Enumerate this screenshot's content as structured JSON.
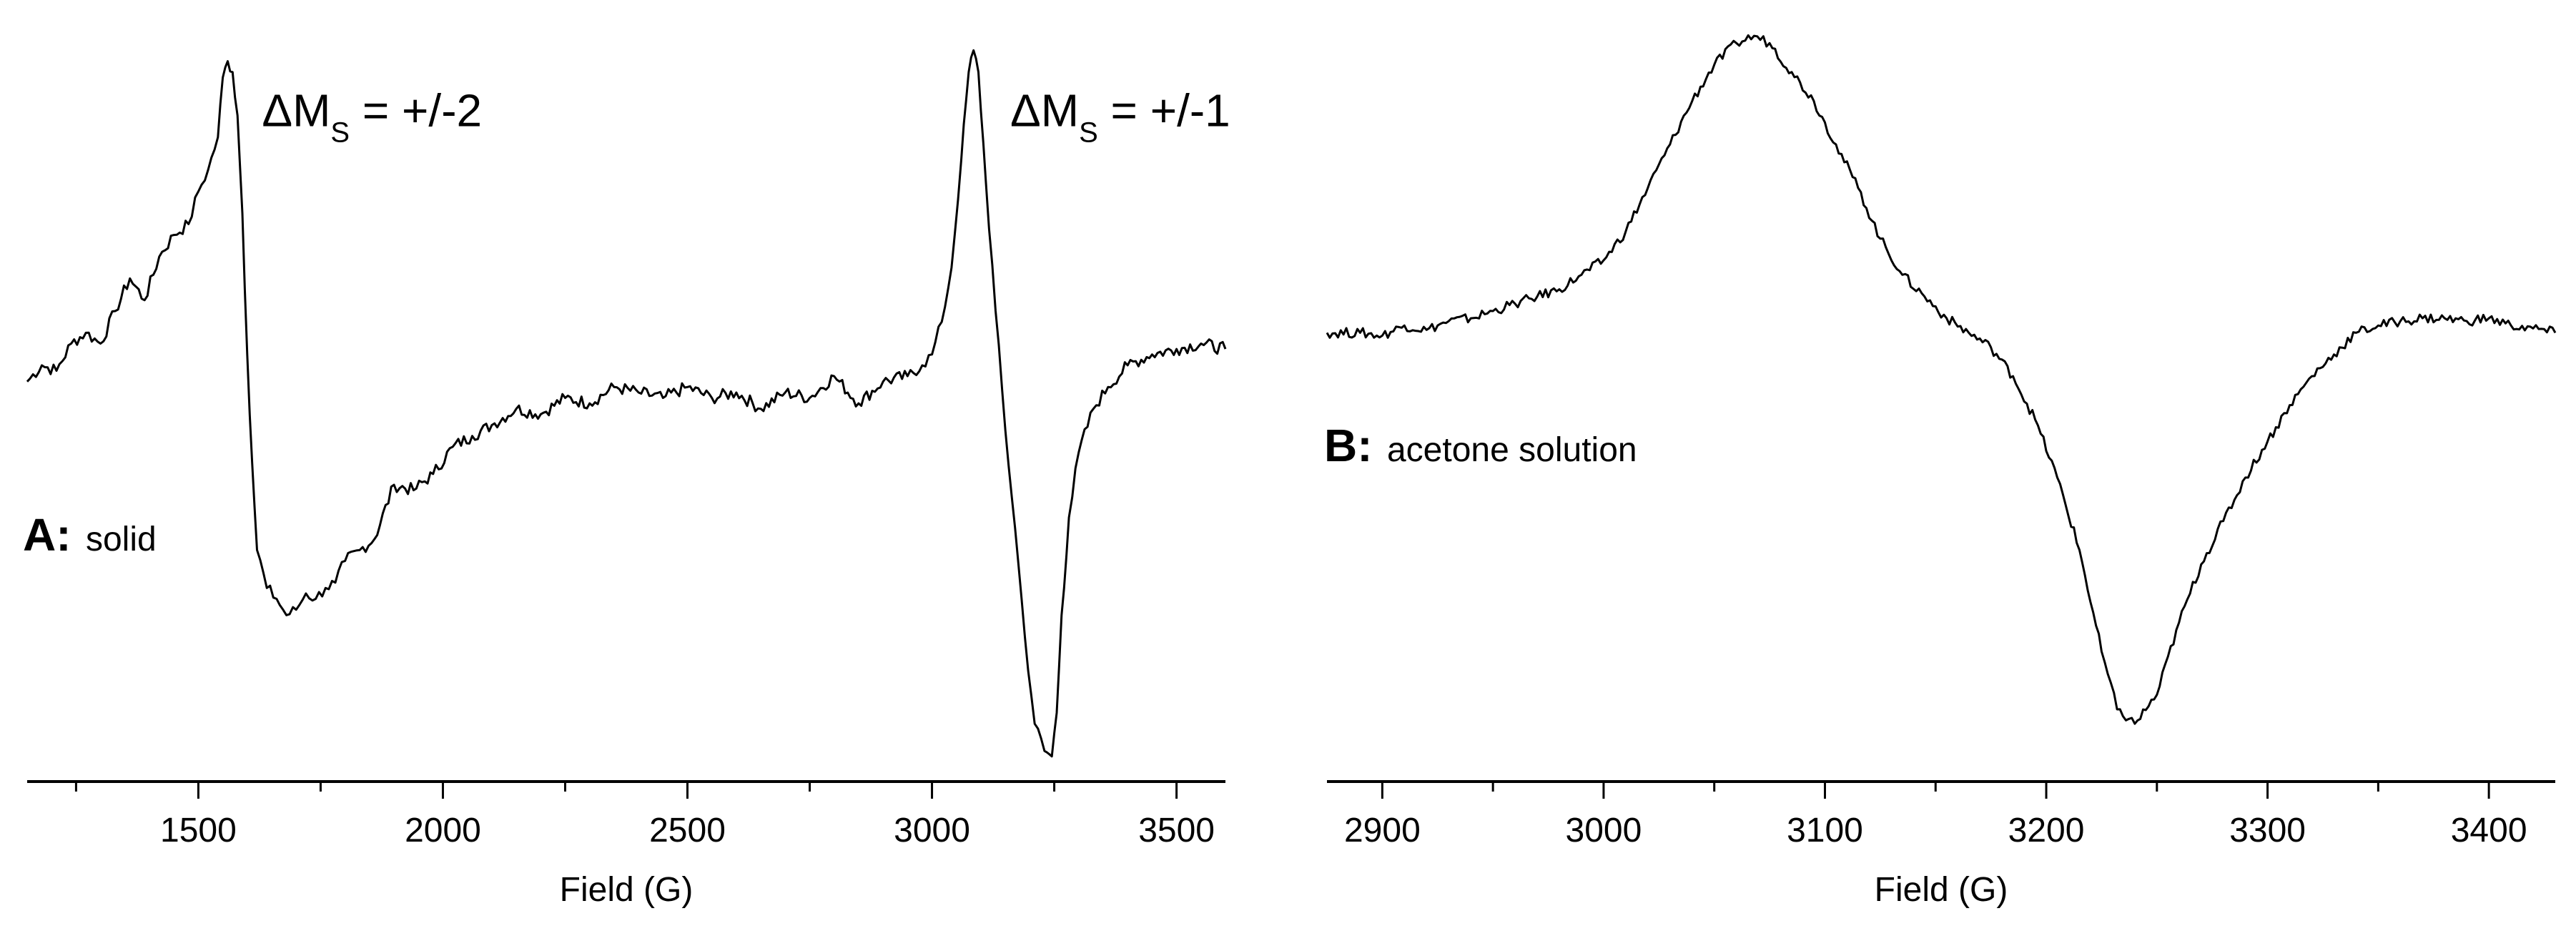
{
  "chart_data": [
    {
      "type": "line",
      "panel_letter": "A:",
      "panel_desc": "solid",
      "title": "",
      "xlabel": "Field (G)",
      "ylabel": "",
      "xlim": [
        1150,
        3600
      ],
      "ylim": [
        -3.6,
        3.2
      ],
      "xticks": [
        1500,
        2000,
        2500,
        3000,
        3500
      ],
      "xtick_labels": [
        "1500",
        "2000",
        "2500",
        "3000",
        "3500"
      ],
      "grid": false,
      "annotations": [
        {
          "main": "ΔM",
          "sub": "S",
          "rest": " = +/-2",
          "x": 1630,
          "y": 2.3
        },
        {
          "main": "ΔM",
          "sub": "S",
          "rest": " = +/-1",
          "x": 3160,
          "y": 2.3
        }
      ],
      "series": [
        {
          "x": [
            1150,
            1180,
            1210,
            1240,
            1270,
            1300,
            1330,
            1360,
            1390,
            1420,
            1450,
            1480,
            1500,
            1520,
            1540,
            1550,
            1560,
            1570,
            1580,
            1590,
            1600,
            1610,
            1620,
            1640,
            1660,
            1680,
            1700,
            1720,
            1740,
            1760,
            1780,
            1800,
            1830,
            1860,
            1900,
            1940,
            1980,
            2020,
            2060,
            2100,
            2150,
            2200,
            2250,
            2300,
            2350,
            2400,
            2450,
            2500,
            2550,
            2600,
            2650,
            2700,
            2750,
            2800,
            2850,
            2900,
            2950,
            2980,
            3000,
            3020,
            3040,
            3060,
            3075,
            3085,
            3095,
            3110,
            3130,
            3150,
            3170,
            3190,
            3210,
            3230,
            3245,
            3255,
            3265,
            3280,
            3300,
            3330,
            3360,
            3400,
            3450,
            3500,
            3550,
            3600
          ],
          "values": [
            -0.05,
            0.1,
            0.05,
            0.3,
            0.4,
            0.3,
            0.6,
            0.9,
            0.7,
            1.1,
            1.3,
            1.4,
            1.7,
            1.9,
            2.2,
            2.75,
            2.9,
            2.8,
            2.4,
            1.5,
            0.2,
            -0.8,
            -1.6,
            -1.95,
            -2.05,
            -2.2,
            -2.15,
            -2.0,
            -2.05,
            -1.95,
            -1.9,
            -1.7,
            -1.6,
            -1.5,
            -1.0,
            -1.05,
            -0.9,
            -0.65,
            -0.55,
            -0.45,
            -0.3,
            -0.35,
            -0.2,
            -0.25,
            -0.1,
            -0.15,
            -0.2,
            -0.1,
            -0.2,
            -0.15,
            -0.3,
            -0.15,
            -0.2,
            0.0,
            -0.25,
            -0.05,
            0.0,
            0.1,
            0.2,
            0.5,
            1.0,
            2.0,
            2.8,
            3.0,
            2.8,
            1.8,
            0.6,
            -0.5,
            -1.4,
            -2.4,
            -3.2,
            -3.45,
            -3.5,
            -3.1,
            -2.2,
            -1.3,
            -0.7,
            -0.3,
            -0.1,
            0.1,
            0.2,
            0.25,
            0.3,
            0.25
          ]
        }
      ]
    },
    {
      "type": "line",
      "panel_letter": "B:",
      "panel_desc": "acetone solution",
      "title": "",
      "xlabel": "Field (G)",
      "ylabel": "",
      "xlim": [
        2875,
        3430
      ],
      "ylim": [
        -3.0,
        2.1
      ],
      "xticks": [
        2900,
        3000,
        3100,
        3200,
        3300,
        3400
      ],
      "xtick_labels": [
        "2900",
        "3000",
        "3100",
        "3200",
        "3300",
        "3400"
      ],
      "grid": false,
      "annotations": [],
      "series": [
        {
          "x": [
            2875,
            2890,
            2900,
            2910,
            2920,
            2930,
            2940,
            2950,
            2960,
            2970,
            2980,
            2990,
            3000,
            3010,
            3020,
            3030,
            3040,
            3050,
            3060,
            3068,
            3075,
            3085,
            3095,
            3105,
            3115,
            3125,
            3135,
            3145,
            3155,
            3165,
            3175,
            3185,
            3195,
            3205,
            3215,
            3225,
            3232,
            3240,
            3250,
            3260,
            3270,
            3280,
            3290,
            3300,
            3310,
            3320,
            3330,
            3340,
            3350,
            3360,
            3370,
            3380,
            3390,
            3400,
            3410,
            3420,
            3430
          ],
          "values": [
            0.0,
            0.0,
            -0.02,
            0.05,
            0.02,
            0.08,
            0.1,
            0.15,
            0.2,
            0.25,
            0.3,
            0.4,
            0.5,
            0.7,
            1.0,
            1.3,
            1.6,
            1.85,
            2.0,
            2.05,
            2.0,
            1.8,
            1.6,
            1.3,
            1.0,
            0.65,
            0.4,
            0.25,
            0.1,
            0.0,
            -0.1,
            -0.3,
            -0.6,
            -1.0,
            -1.5,
            -2.2,
            -2.6,
            -2.7,
            -2.5,
            -2.0,
            -1.6,
            -1.3,
            -1.0,
            -0.75,
            -0.5,
            -0.3,
            -0.15,
            0.0,
            0.05,
            0.08,
            0.1,
            0.1,
            0.08,
            0.1,
            0.05,
            0.03,
            0.0
          ]
        }
      ]
    }
  ]
}
